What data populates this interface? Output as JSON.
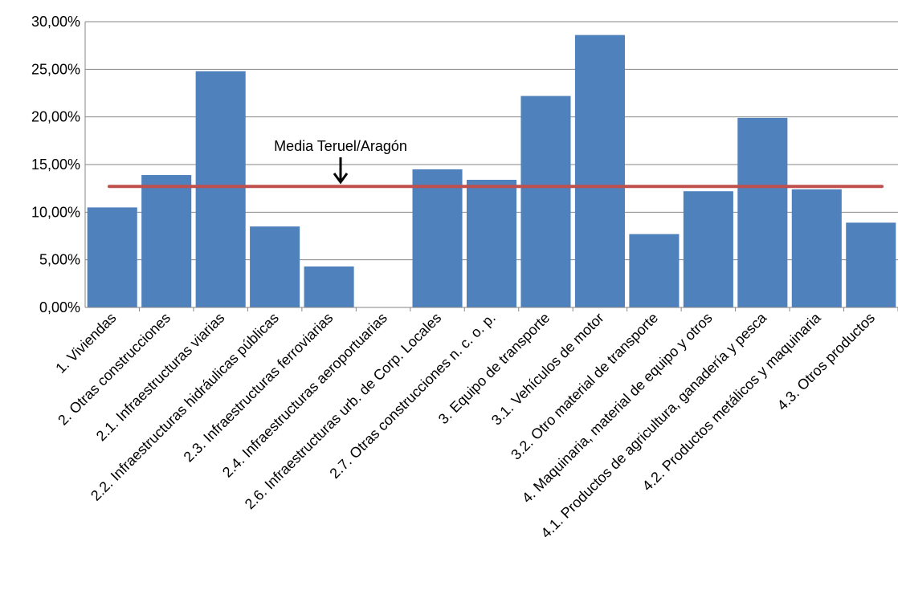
{
  "chart_data": {
    "type": "bar",
    "title": "",
    "xlabel": "",
    "ylabel": "",
    "ylim": [
      0,
      30
    ],
    "yticks": [
      "0,00%",
      "5,00%",
      "10,00%",
      "15,00%",
      "20,00%",
      "25,00%",
      "30,00%"
    ],
    "grid": true,
    "categories": [
      "1. Viviendas",
      "2. Otras construcciones",
      "2.1. Infraestructuras viarias",
      "2.2. Infraestructuras hidráulicas públicas",
      "2.3. Infraestructuras ferroviarias",
      "2.4. Infraestructuras aeroportuarias",
      "2.6. Infraestructuras urb. de Corp. Locales",
      "2.7. Otras construcciones n. c. o. p.",
      "3. Equipo de transporte",
      "3.1. Vehículos de motor",
      "3.2. Otro material de transporte",
      "4. Maquinaria, material de equipo y otros",
      "4.1. Productos de agricultura, ganadería y pesca",
      "4.2. Productos metálicos y maquinaria",
      "4.3. Otros productos"
    ],
    "values": [
      10.5,
      13.9,
      24.8,
      8.5,
      4.3,
      0.0,
      14.5,
      13.4,
      22.2,
      28.6,
      7.7,
      12.2,
      19.9,
      12.4,
      8.9
    ],
    "reference_line": {
      "value": 12.7,
      "label": "Media Teruel/Aragón",
      "color": "#c0504d"
    },
    "bar_color": "#4f81bd",
    "grid_color": "#868686"
  }
}
